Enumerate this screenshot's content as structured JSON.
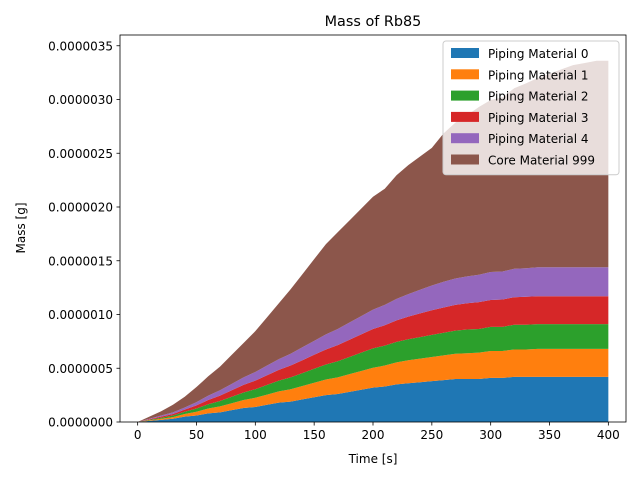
{
  "chart_data": {
    "type": "area",
    "stacked": true,
    "title": "Mass of Rb85",
    "xlabel": "Time [s]",
    "ylabel": "Mass [g]",
    "xlim": [
      -15,
      415
    ],
    "ylim": [
      0,
      3.6e-06
    ],
    "xticks": [
      0,
      50,
      100,
      150,
      200,
      250,
      300,
      350,
      400
    ],
    "xtick_labels": [
      "0",
      "50",
      "100",
      "150",
      "200",
      "250",
      "300",
      "350",
      "400"
    ],
    "yticks": [
      0,
      5e-07,
      1e-06,
      1.5e-06,
      2e-06,
      2.5e-06,
      3e-06,
      3.5e-06
    ],
    "ytick_labels": [
      "0.0000000",
      "0.0000005",
      "0.0000010",
      "0.0000015",
      "0.0000020",
      "0.0000025",
      "0.0000030",
      "0.0000035"
    ],
    "grid": false,
    "legend_position": "top-right",
    "x": [
      0,
      10,
      20,
      30,
      40,
      50,
      60,
      70,
      80,
      90,
      100,
      110,
      120,
      130,
      140,
      150,
      160,
      170,
      180,
      190,
      200,
      210,
      220,
      230,
      240,
      250,
      260,
      270,
      280,
      290,
      300,
      310,
      320,
      330,
      340,
      350,
      360,
      370,
      380,
      390,
      400
    ],
    "series": [
      {
        "name": "Piping Material 0",
        "color": "#1f77b4",
        "values": [
          0,
          1e-08,
          2e-08,
          3e-08,
          5e-08,
          6e-08,
          8e-08,
          9e-08,
          1.1e-07,
          1.3e-07,
          1.4e-07,
          1.6e-07,
          1.8e-07,
          1.9e-07,
          2.1e-07,
          2.3e-07,
          2.5e-07,
          2.6e-07,
          2.8e-07,
          3e-07,
          3.2e-07,
          3.3e-07,
          3.5e-07,
          3.6e-07,
          3.7e-07,
          3.8e-07,
          3.9e-07,
          4e-07,
          4e-07,
          4e-07,
          4.1e-07,
          4.1e-07,
          4.2e-07,
          4.2e-07,
          4.2e-07,
          4.2e-07,
          4.2e-07,
          4.2e-07,
          4.2e-07,
          4.2e-07,
          4.2e-07
        ]
      },
      {
        "name": "Piping Material 1",
        "color": "#ff7f0e",
        "values": [
          0,
          5e-09,
          1e-08,
          1.5e-08,
          2.5e-08,
          3.5e-08,
          4.5e-08,
          5.5e-08,
          6.5e-08,
          7.5e-08,
          8.5e-08,
          9.5e-08,
          1.05e-07,
          1.15e-07,
          1.25e-07,
          1.35e-07,
          1.45e-07,
          1.55e-07,
          1.65e-07,
          1.75e-07,
          1.85e-07,
          1.95e-07,
          2.05e-07,
          2.15e-07,
          2.2e-07,
          2.25e-07,
          2.3e-07,
          2.35e-07,
          2.4e-07,
          2.45e-07,
          2.5e-07,
          2.5e-07,
          2.55e-07,
          2.55e-07,
          2.6e-07,
          2.6e-07,
          2.6e-07,
          2.6e-07,
          2.6e-07,
          2.6e-07,
          2.6e-07
        ]
      },
      {
        "name": "Piping Material 2",
        "color": "#2ca02c",
        "values": [
          0,
          5e-09,
          1e-08,
          1.5e-08,
          2e-08,
          3e-08,
          4e-08,
          5e-08,
          6e-08,
          7e-08,
          8e-08,
          9e-08,
          1e-07,
          1.1e-07,
          1.2e-07,
          1.3e-07,
          1.4e-07,
          1.5e-07,
          1.6e-07,
          1.7e-07,
          1.8e-07,
          1.85e-07,
          1.9e-07,
          1.95e-07,
          2e-07,
          2.05e-07,
          2.1e-07,
          2.15e-07,
          2.2e-07,
          2.2e-07,
          2.25e-07,
          2.25e-07,
          2.3e-07,
          2.3e-07,
          2.3e-07,
          2.3e-07,
          2.3e-07,
          2.3e-07,
          2.3e-07,
          2.3e-07,
          2.3e-07
        ]
      },
      {
        "name": "Piping Material 3",
        "color": "#d62728",
        "values": [
          0,
          5e-09,
          1e-08,
          1.5e-08,
          2e-08,
          3e-08,
          4e-08,
          5e-08,
          6e-08,
          7e-08,
          8e-08,
          9e-08,
          1e-07,
          1.1e-07,
          1.2e-07,
          1.3e-07,
          1.4e-07,
          1.5e-07,
          1.6e-07,
          1.7e-07,
          1.8e-07,
          1.9e-07,
          2e-07,
          2.1e-07,
          2.2e-07,
          2.3e-07,
          2.35e-07,
          2.4e-07,
          2.45e-07,
          2.5e-07,
          2.5e-07,
          2.55e-07,
          2.55e-07,
          2.6e-07,
          2.6e-07,
          2.6e-07,
          2.6e-07,
          2.6e-07,
          2.6e-07,
          2.6e-07,
          2.6e-07
        ]
      },
      {
        "name": "Piping Material 4",
        "color": "#9467bd",
        "values": [
          0,
          5e-09,
          1e-08,
          1.5e-08,
          2e-08,
          3e-08,
          4e-08,
          5e-08,
          6e-08,
          7e-08,
          8e-08,
          9e-08,
          1e-07,
          1.1e-07,
          1.2e-07,
          1.3e-07,
          1.4e-07,
          1.5e-07,
          1.6e-07,
          1.7e-07,
          1.8e-07,
          1.9e-07,
          2e-07,
          2.1e-07,
          2.2e-07,
          2.3e-07,
          2.4e-07,
          2.45e-07,
          2.5e-07,
          2.55e-07,
          2.6e-07,
          2.6e-07,
          2.65e-07,
          2.65e-07,
          2.7e-07,
          2.7e-07,
          2.7e-07,
          2.7e-07,
          2.7e-07,
          2.7e-07,
          2.7e-07
        ]
      },
      {
        "name": "Core Material 999",
        "color": "#8c564b",
        "values": [
          0,
          2e-08,
          4e-08,
          7e-08,
          1e-07,
          1.4e-07,
          1.8e-07,
          2.2e-07,
          2.7e-07,
          3.2e-07,
          3.8e-07,
          4.5e-07,
          5.2e-07,
          6e-07,
          6.8e-07,
          7.6e-07,
          8.4e-07,
          9e-07,
          9.5e-07,
          1e-06,
          1.05e-06,
          1.08e-06,
          1.15e-06,
          1.2e-06,
          1.24e-06,
          1.28e-06,
          1.38e-06,
          1.45e-06,
          1.5e-06,
          1.56e-06,
          1.6e-06,
          1.62e-06,
          1.68e-06,
          1.72e-06,
          1.76e-06,
          1.8e-06,
          1.84e-06,
          1.88e-06,
          1.9e-06,
          1.92e-06,
          1.92e-06
        ]
      }
    ]
  }
}
